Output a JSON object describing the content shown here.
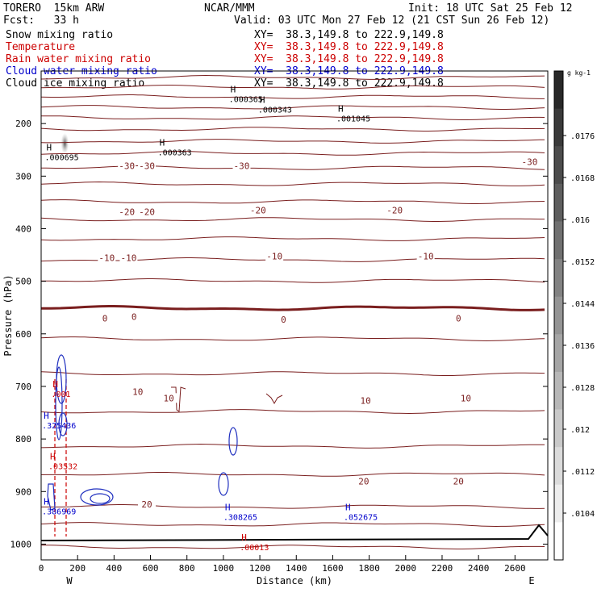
{
  "header": {
    "model": "TORERO  15km ARW",
    "center": "NCAR/MMM",
    "init": "Init: 18 UTC Sat 25 Feb 12",
    "fcst": "Fcst:   33 h",
    "valid": "Valid: 03 UTC Mon 27 Feb 12 (21 CST Sun 26 Feb 12)"
  },
  "fields": [
    {
      "name": "Snow mixing ratio",
      "xy": "XY=  38.3,149.8 to 222.9,149.8",
      "color": "#000000"
    },
    {
      "name": "Temperature",
      "xy": "XY=  38.3,149.8 to 222.9,149.8",
      "color": "#cc0000"
    },
    {
      "name": "Rain water mixing ratio",
      "xy": "XY=  38.3,149.8 to 222.9,149.8",
      "color": "#cc0000"
    },
    {
      "name": "Cloud water mixing ratio",
      "xy": "XY=  38.3,149.8 to 222.9,149.8",
      "color": "#0000cc"
    },
    {
      "name": "Cloud ice mixing ratio",
      "xy": "XY=  38.3,149.8 to 222.9,149.8",
      "color": "#000000"
    }
  ],
  "colorbar": {
    "unit": "g kg-1",
    "levels": [
      ".0176",
      ".0168",
      ".016",
      ".0152",
      ".0144",
      ".0136",
      ".0128",
      ".012",
      ".0112",
      ".0104"
    ]
  },
  "chart_data": {
    "type": "contour",
    "xlabel": "Distance (km)",
    "ylabel": "Pressure (hPa)",
    "xlim": [
      0,
      2780
    ],
    "ylim": [
      1030,
      100
    ],
    "xticks": [
      0,
      200,
      400,
      600,
      800,
      1000,
      1200,
      1400,
      1600,
      1800,
      2000,
      2200,
      2400,
      2600
    ],
    "yticks": [
      200,
      300,
      400,
      500,
      600,
      700,
      800,
      900,
      1000
    ],
    "endpoints": {
      "left": "W",
      "right": "E"
    },
    "temperature_labels": [
      {
        "text": "-30",
        "x": 470,
        "p": 280
      },
      {
        "text": "-30",
        "x": 580,
        "p": 280
      },
      {
        "text": "-30",
        "x": 1100,
        "p": 280
      },
      {
        "text": "-30",
        "x": 2680,
        "p": 273
      },
      {
        "text": "-20",
        "x": 470,
        "p": 368
      },
      {
        "text": "-20",
        "x": 580,
        "p": 368
      },
      {
        "text": "-20",
        "x": 1190,
        "p": 365
      },
      {
        "text": "-20",
        "x": 1940,
        "p": 365
      },
      {
        "text": "-10",
        "x": 360,
        "p": 455
      },
      {
        "text": "-10",
        "x": 480,
        "p": 455
      },
      {
        "text": "-10",
        "x": 1280,
        "p": 452
      },
      {
        "text": "-10",
        "x": 2110,
        "p": 452
      },
      {
        "text": "0",
        "x": 350,
        "p": 570
      },
      {
        "text": "0",
        "x": 510,
        "p": 567
      },
      {
        "text": "0",
        "x": 1330,
        "p": 573
      },
      {
        "text": "0",
        "x": 2290,
        "p": 570
      },
      {
        "text": "10",
        "x": 530,
        "p": 710
      },
      {
        "text": "10",
        "x": 700,
        "p": 722
      },
      {
        "text": "10",
        "x": 1780,
        "p": 727
      },
      {
        "text": "10",
        "x": 2330,
        "p": 722
      },
      {
        "text": "20",
        "x": 580,
        "p": 924
      },
      {
        "text": "20",
        "x": 1770,
        "p": 880
      },
      {
        "text": "20",
        "x": 2290,
        "p": 880
      }
    ],
    "extrema": [
      {
        "text": ".000365",
        "x": 1030,
        "p": 150,
        "color": "#000000"
      },
      {
        "text": ".000343",
        "x": 1190,
        "p": 170,
        "color": "#000000"
      },
      {
        "text": ".001045",
        "x": 1620,
        "p": 187,
        "color": "#000000"
      },
      {
        "text": ".000363",
        "x": 640,
        "p": 251,
        "color": "#000000"
      },
      {
        "text": ".000695",
        "x": 20,
        "p": 260,
        "color": "#000000"
      },
      {
        "text": ".001",
        "x": 55,
        "p": 711,
        "color": "#cc0000"
      },
      {
        "text": ".325436",
        "x": 5,
        "p": 771,
        "color": "#0000cc"
      },
      {
        "text": ".03532",
        "x": 40,
        "p": 848,
        "color": "#cc0000"
      },
      {
        "text": ".386969",
        "x": 5,
        "p": 934,
        "color": "#0000cc"
      },
      {
        "text": ".308265",
        "x": 1000,
        "p": 945,
        "color": "#0000cc"
      },
      {
        "text": ".052675",
        "x": 1660,
        "p": 945,
        "color": "#0000cc"
      },
      {
        "text": ".00013",
        "x": 1090,
        "p": 1002,
        "color": "#cc0000"
      }
    ]
  }
}
